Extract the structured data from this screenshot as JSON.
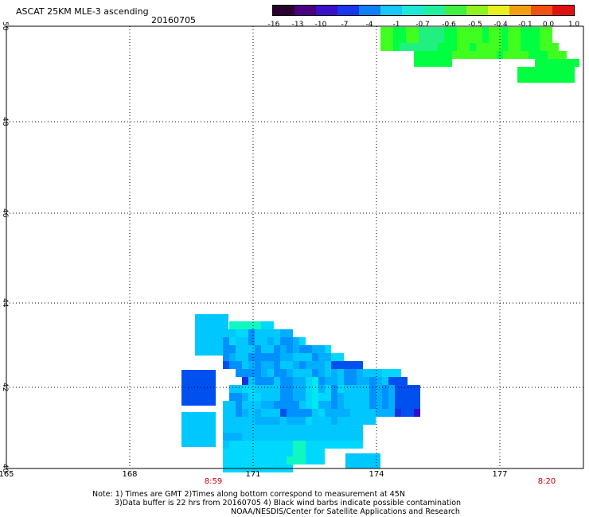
{
  "header": {
    "title": "ASCAT 25KM MLE-3 ascending",
    "date": "20160705"
  },
  "colorbar": {
    "labels": [
      "-16",
      "-13",
      "-10",
      "-7",
      "-4",
      "-1",
      "-0.7",
      "-0.6",
      "-0.5",
      "-0.4",
      "-0.1",
      "0.0",
      "1.0"
    ],
    "colors": [
      "#2a0030",
      "#4a0080",
      "#3a10c8",
      "#1838f0",
      "#1080f8",
      "#18c8f8",
      "#20e8d8",
      "#20f0a0",
      "#40f040",
      "#90f020",
      "#e8f020",
      "#f0a010",
      "#f05010",
      "#e01010"
    ]
  },
  "map": {
    "lat_labels": [
      "50",
      "48",
      "46",
      "44",
      "42",
      "40"
    ],
    "lon_labels": [
      "165",
      "168",
      "171",
      "174",
      "177"
    ],
    "time_labels": [
      "8:59",
      "8:20"
    ],
    "cell_colors": {
      "a": "#00c8ff",
      "b": "#00d8ff",
      "c": "#00e8f0",
      "d": "#0090ff",
      "e": "#0050f0",
      "f": "#1830e0",
      "g": "#3010d0",
      "h": "#10f8c0",
      "i": "#00ff40",
      "j": "#40ff20",
      "k": "#20f080",
      "m": "#00b0ff"
    }
  },
  "notes": {
    "line1": "Note: 1) Times are GMT 2)Times along bottom correspond to measurement at 45N",
    "line2": "3)Data buffer is 22 hrs from 20160705 4) Black wind barbs indicate possible contamination",
    "line3": "NOAA/NESDIS/Center for Satellite Applications and Research"
  }
}
